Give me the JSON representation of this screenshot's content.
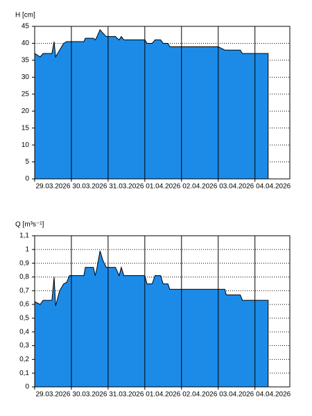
{
  "chart_data": [
    {
      "type": "area",
      "y_label": "H [cm]",
      "color": "#1c8be8",
      "x": [
        0,
        0.15,
        0.23,
        0.47,
        0.53,
        0.57,
        0.68,
        0.79,
        0.87,
        1.34,
        1.38,
        1.6,
        1.65,
        1.7,
        1.78,
        1.86,
        1.95,
        2.2,
        2.3,
        2.36,
        2.43,
        3.0,
        3.06,
        3.2,
        3.28,
        3.43,
        3.5,
        3.63,
        3.68,
        5.0,
        5.18,
        5.6,
        5.66,
        6.36
      ],
      "values": [
        37,
        36,
        37,
        37,
        40.5,
        36,
        38,
        40,
        40.5,
        40.5,
        41.5,
        41.5,
        41,
        42,
        44,
        43,
        42,
        42,
        41,
        42,
        41,
        41,
        40,
        40,
        41,
        41,
        40,
        40,
        39,
        39,
        38,
        38,
        37,
        37
      ],
      "xlim": [
        0,
        6.95
      ],
      "ylim": [
        0,
        45
      ],
      "xticks": [
        {
          "value": 0,
          "label": "29.03.2026"
        },
        {
          "value": 1,
          "label": "30.03.2026"
        },
        {
          "value": 2,
          "label": "31.03.2026"
        },
        {
          "value": 3,
          "label": "01.04.2026"
        },
        {
          "value": 4,
          "label": "02.04.2026"
        },
        {
          "value": 5,
          "label": "03.04.2026"
        },
        {
          "value": 6,
          "label": "04.04.2026"
        }
      ],
      "yticks": [
        0,
        5,
        10,
        15,
        20,
        25,
        30,
        35,
        40,
        45
      ]
    },
    {
      "type": "area",
      "y_label": "Q [m³s⁻¹]",
      "color": "#1c8be8",
      "x": [
        0,
        0.15,
        0.23,
        0.47,
        0.53,
        0.57,
        0.68,
        0.79,
        0.87,
        0.95,
        1.34,
        1.38,
        1.6,
        1.65,
        1.7,
        1.78,
        1.86,
        1.95,
        2.2,
        2.3,
        2.36,
        2.43,
        3.0,
        3.06,
        3.2,
        3.28,
        3.43,
        3.5,
        3.63,
        3.68,
        5.18,
        5.22,
        5.6,
        5.66,
        6.36
      ],
      "values": [
        0.62,
        0.6,
        0.63,
        0.63,
        0.8,
        0.59,
        0.7,
        0.75,
        0.76,
        0.81,
        0.81,
        0.87,
        0.87,
        0.81,
        0.87,
        0.99,
        0.92,
        0.87,
        0.87,
        0.81,
        0.87,
        0.81,
        0.81,
        0.75,
        0.75,
        0.81,
        0.81,
        0.75,
        0.75,
        0.71,
        0.71,
        0.67,
        0.67,
        0.63,
        0.63
      ],
      "xlim": [
        0,
        6.95
      ],
      "ylim": [
        0,
        1.1
      ],
      "xticks": [
        {
          "value": 0,
          "label": "29.03.2026"
        },
        {
          "value": 1,
          "label": "30.03.2026"
        },
        {
          "value": 2,
          "label": "31.03.2026"
        },
        {
          "value": 3,
          "label": "01.04.2026"
        },
        {
          "value": 4,
          "label": "02.04.2026"
        },
        {
          "value": 5,
          "label": "03.04.2026"
        },
        {
          "value": 6,
          "label": "04.04.2026"
        }
      ],
      "yticks": [
        0,
        {
          "value": 0.1,
          "label": "0,1"
        },
        {
          "value": 0.2,
          "label": "0,2"
        },
        {
          "value": 0.3,
          "label": "0,3"
        },
        {
          "value": 0.4,
          "label": "0,4"
        },
        {
          "value": 0.5,
          "label": "0,5"
        },
        {
          "value": 0.6,
          "label": "0,6"
        },
        {
          "value": 0.7,
          "label": "0,7"
        },
        {
          "value": 0.8,
          "label": "0,8"
        },
        {
          "value": 0.9,
          "label": "0,9"
        },
        1,
        {
          "value": 1.1,
          "label": "1,1"
        }
      ]
    }
  ]
}
